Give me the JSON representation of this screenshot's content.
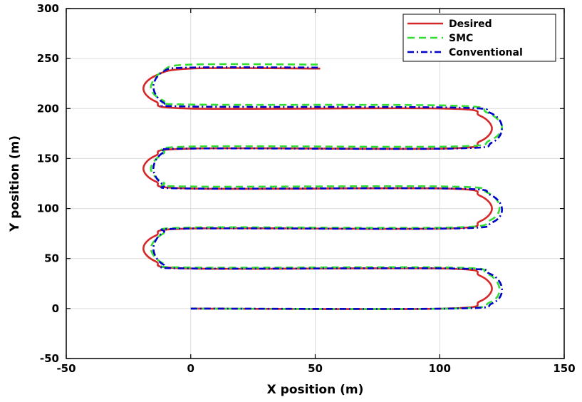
{
  "chart_data": {
    "type": "line",
    "title": "",
    "xlabel": "X position (m)",
    "ylabel": "Y position (m)",
    "xlim": [
      -50,
      150
    ],
    "ylim": [
      -50,
      300
    ],
    "xticks": [
      -50,
      0,
      50,
      100,
      150
    ],
    "yticks": [
      -50,
      0,
      50,
      100,
      150,
      200,
      250,
      300
    ],
    "xtick_labels": [
      "-50",
      "0",
      "50",
      "100",
      "150"
    ],
    "ytick_labels": [
      "-50",
      "0",
      "50",
      "100",
      "150",
      "200",
      "250",
      "300"
    ],
    "grid": true,
    "legend_position": "top-right",
    "series": [
      {
        "name": "Desired",
        "color": "#d62728",
        "style": "solid",
        "points": [
          [
            0,
            0
          ],
          [
            102,
            0
          ],
          [
            116,
            7
          ],
          [
            121,
            20
          ],
          [
            116,
            33
          ],
          [
            102,
            40
          ],
          [
            0,
            40
          ],
          [
            -14,
            47
          ],
          [
            -19,
            60
          ],
          [
            -14,
            73
          ],
          [
            0,
            80
          ],
          [
            102,
            80
          ],
          [
            116,
            87
          ],
          [
            121,
            100
          ],
          [
            116,
            113
          ],
          [
            102,
            120
          ],
          [
            0,
            120
          ],
          [
            -14,
            127
          ],
          [
            -19,
            140
          ],
          [
            -14,
            153
          ],
          [
            0,
            160
          ],
          [
            102,
            160
          ],
          [
            116,
            167
          ],
          [
            121,
            180
          ],
          [
            116,
            193
          ],
          [
            102,
            200
          ],
          [
            0,
            200
          ],
          [
            -14,
            207
          ],
          [
            -19,
            220
          ],
          [
            -14,
            233
          ],
          [
            0,
            240
          ],
          [
            52,
            240
          ]
        ]
      },
      {
        "name": "SMC",
        "color": "#33dd33",
        "style": "dashed",
        "points": [
          [
            0,
            0
          ],
          [
            104,
            0
          ],
          [
            120,
            6
          ],
          [
            124,
            20
          ],
          [
            119,
            35
          ],
          [
            104,
            41
          ],
          [
            0,
            41
          ],
          [
            -11,
            45
          ],
          [
            -16,
            60
          ],
          [
            -11,
            75
          ],
          [
            0,
            81
          ],
          [
            104,
            81
          ],
          [
            120,
            88
          ],
          [
            124,
            102
          ],
          [
            119,
            116
          ],
          [
            104,
            122
          ],
          [
            0,
            122
          ],
          [
            -11,
            126
          ],
          [
            -16,
            140
          ],
          [
            -11,
            155
          ],
          [
            0,
            162
          ],
          [
            104,
            162
          ],
          [
            120,
            168
          ],
          [
            125,
            182
          ],
          [
            119,
            196
          ],
          [
            104,
            203
          ],
          [
            0,
            204
          ],
          [
            -11,
            208
          ],
          [
            -16,
            221
          ],
          [
            -11,
            238
          ],
          [
            0,
            244
          ],
          [
            52,
            244
          ]
        ]
      },
      {
        "name": "Conventional",
        "color": "#0000cc",
        "style": "dashdot",
        "points": [
          [
            0,
            0
          ],
          [
            105,
            0
          ],
          [
            121,
            5
          ],
          [
            125,
            20
          ],
          [
            120,
            35
          ],
          [
            105,
            40
          ],
          [
            0,
            40
          ],
          [
            -11,
            44
          ],
          [
            -15,
            60
          ],
          [
            -11,
            76
          ],
          [
            0,
            80
          ],
          [
            105,
            80
          ],
          [
            121,
            86
          ],
          [
            125,
            100
          ],
          [
            120,
            114
          ],
          [
            105,
            120
          ],
          [
            0,
            120
          ],
          [
            -11,
            124
          ],
          [
            -15,
            140
          ],
          [
            -11,
            156
          ],
          [
            0,
            160
          ],
          [
            105,
            160
          ],
          [
            121,
            166
          ],
          [
            125,
            182
          ],
          [
            120,
            196
          ],
          [
            105,
            201
          ],
          [
            0,
            202
          ],
          [
            -11,
            206
          ],
          [
            -15,
            222
          ],
          [
            -11,
            237
          ],
          [
            0,
            241
          ],
          [
            52,
            241
          ]
        ]
      }
    ]
  }
}
